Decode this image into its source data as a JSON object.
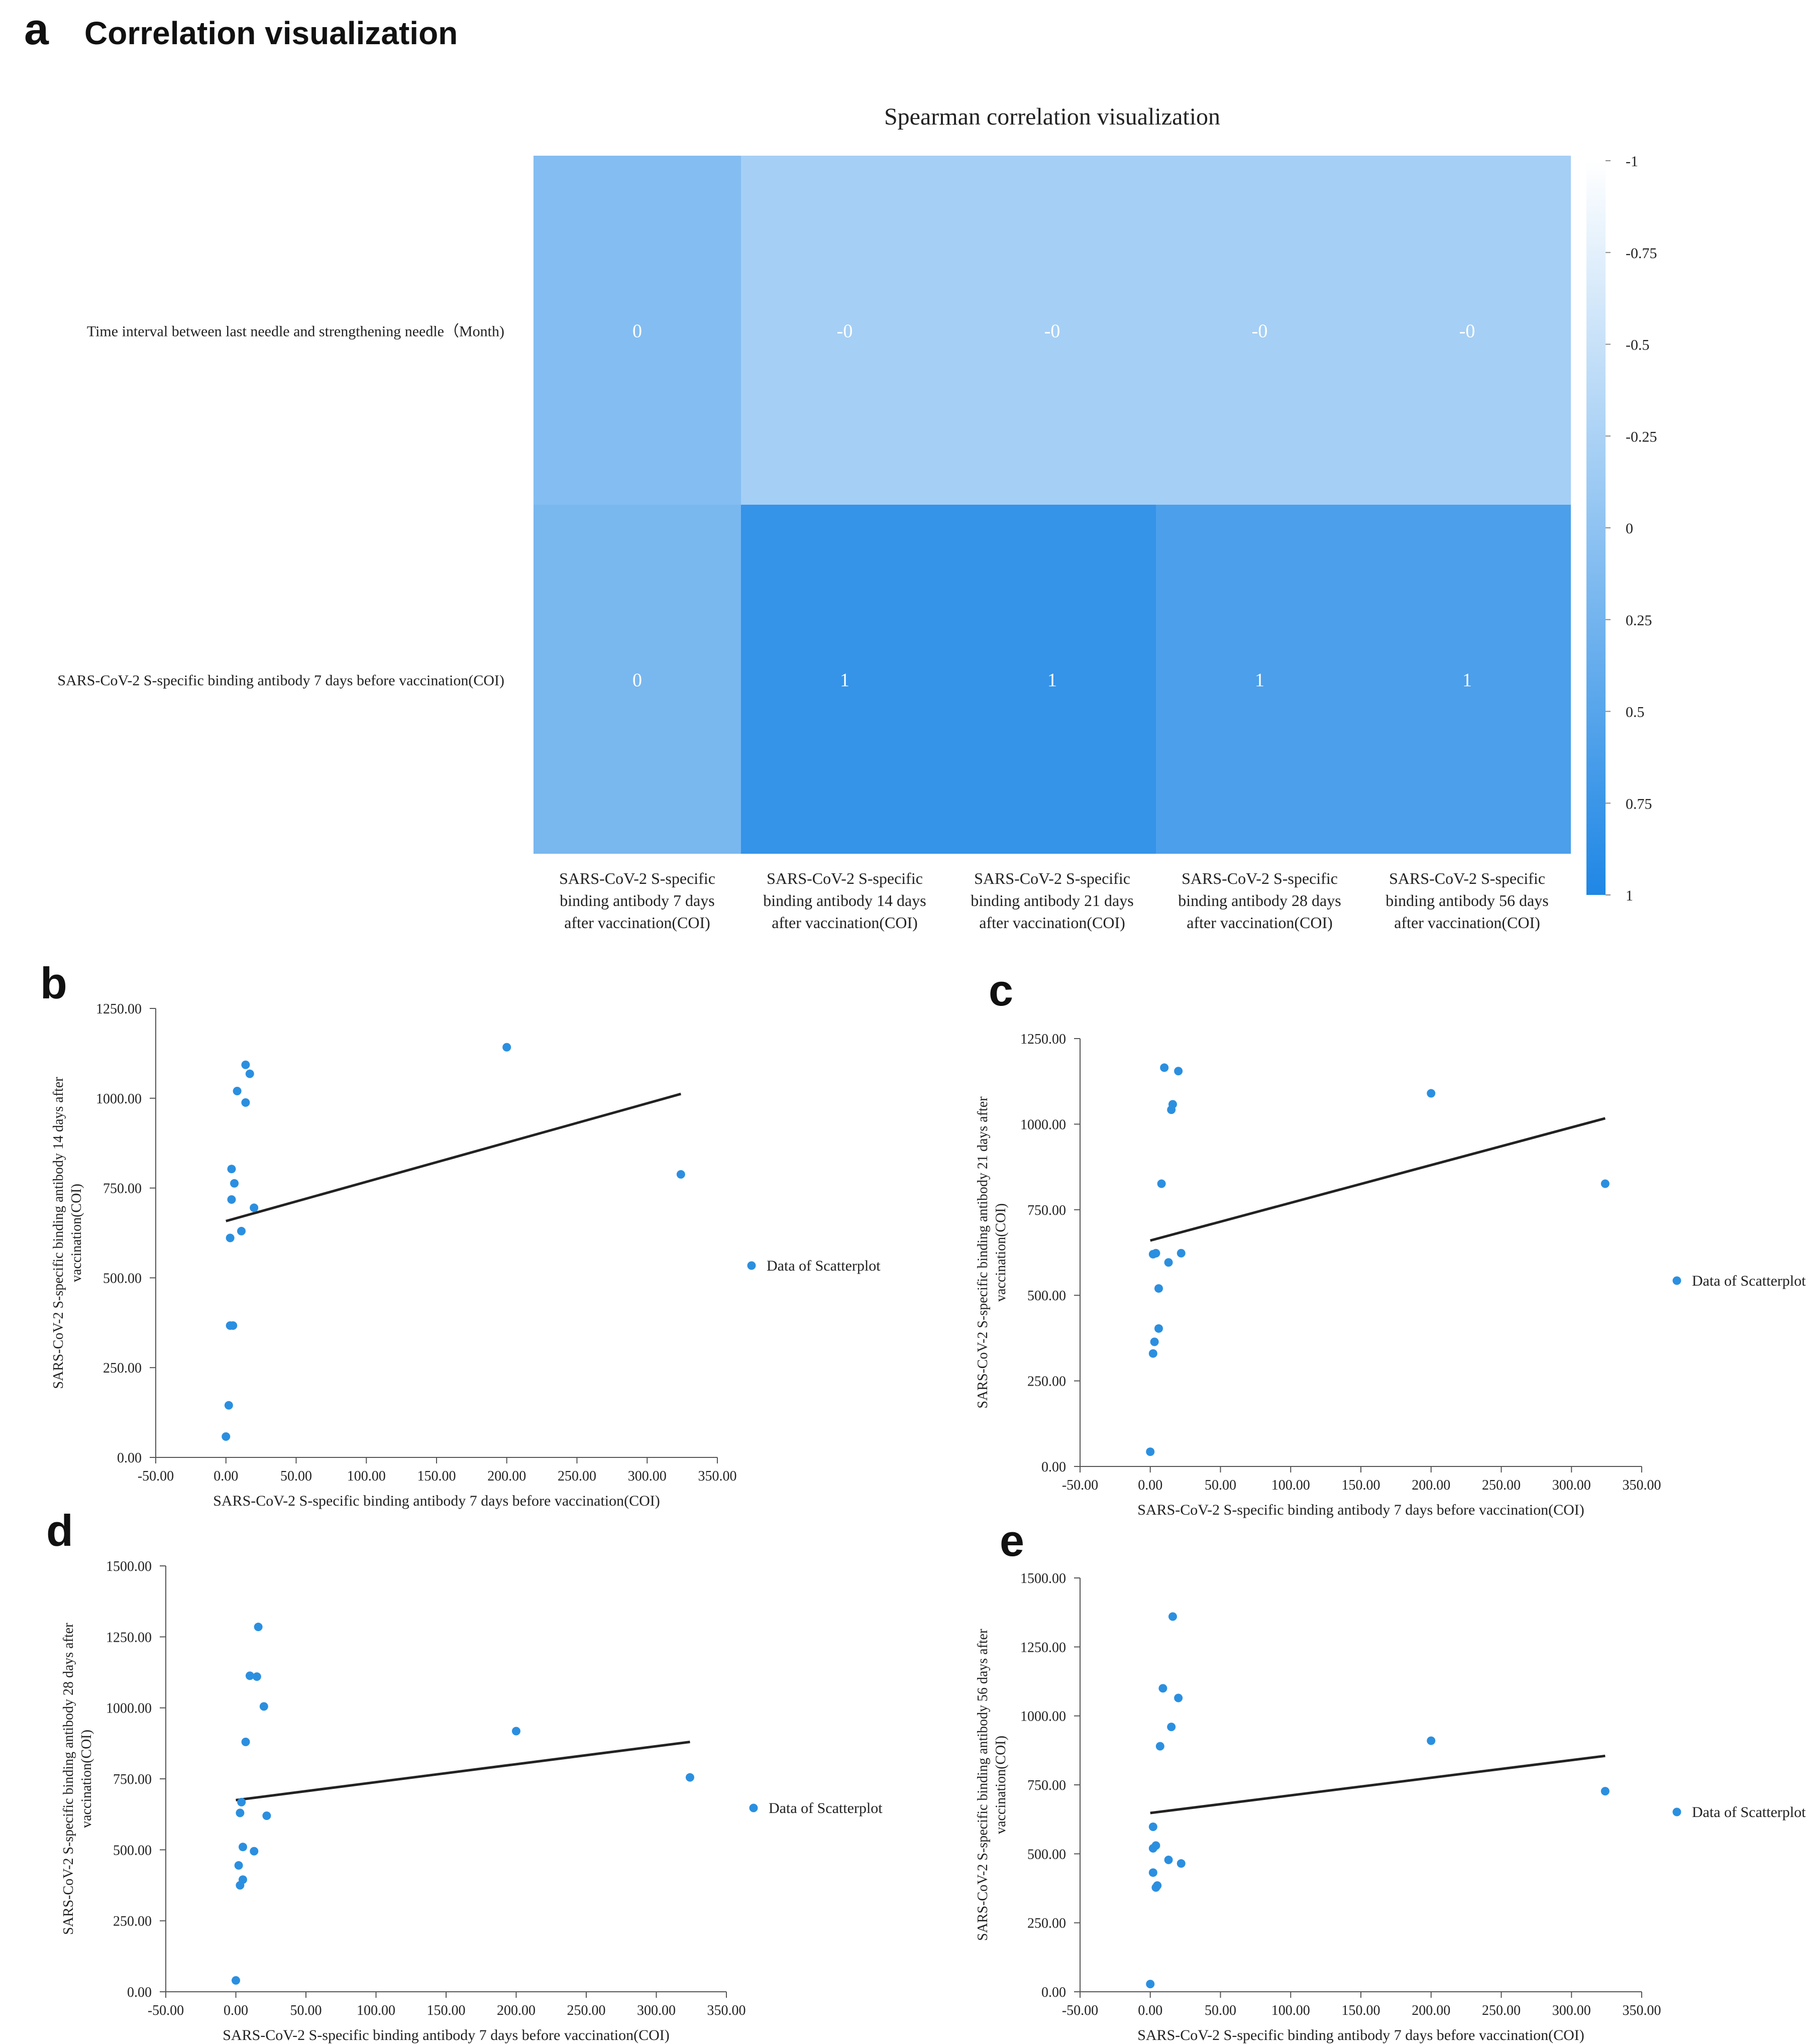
{
  "panel_a": {
    "letter": "a",
    "title": "Correlation visualization"
  },
  "colors": {
    "scatter_point": "#2b8fe0",
    "fit_line": "#222222",
    "cell_values": {
      "0.2": "#64aff2",
      "-0.2": "#b6d9f7",
      "0.1": "#8cc2f3",
      "0.8": "#3597e8",
      "0.6": "#46a1ec"
    }
  },
  "chart_data": [
    {
      "type": "heatmap",
      "title": "Spearman correlation visualization",
      "rows": [
        "Time interval between last needle and strengthening needle（Month)",
        "SARS-CoV-2 S-specific binding antibody 7 days before vaccination(COI)"
      ],
      "columns": [
        [
          "SARS-CoV-2 S-specific",
          "binding antibody 7 days",
          "after vaccination(COI)"
        ],
        [
          "SARS-CoV-2 S-specific",
          "binding antibody 14 days",
          "after vaccination(COI)"
        ],
        [
          "SARS-CoV-2 S-specific",
          "binding antibody 21 days",
          "after vaccination(COI)"
        ],
        [
          "SARS-CoV-2 S-specific",
          "binding antibody 28 days",
          "after vaccination(COI)"
        ],
        [
          "SARS-CoV-2 S-specific",
          "binding antibody 56 days",
          "after vaccination(COI)"
        ]
      ],
      "values": [
        [
          0.1,
          -0.2,
          -0.2,
          -0.2,
          -0.2
        ],
        [
          0.2,
          0.8,
          0.8,
          0.6,
          0.6
        ]
      ],
      "labels": [
        [
          "0",
          "-0",
          "-0",
          "-0",
          "-0"
        ],
        [
          "0",
          "1",
          "1",
          "1",
          "1"
        ]
      ],
      "colorbar": {
        "range": [
          -1,
          1
        ],
        "ticks": [
          "-1",
          "-0.75",
          "-0.5",
          "-0.25",
          "0",
          "0.25",
          "0.5",
          "0.75",
          "1"
        ]
      }
    },
    {
      "panel": "b",
      "type": "scatter",
      "xlabel": "SARS-CoV-2 S-specific binding antibody 7 days before vaccination(COI)",
      "ylabel": [
        "SARS-CoV-2 S-specific binding antibody 14 days after",
        "vaccination(COI)"
      ],
      "legend": "Data of Scatterplot",
      "xlim": [
        -50,
        350
      ],
      "ylim": [
        0,
        1250
      ],
      "xticks": [
        "-50.00",
        "0.00",
        "50.00",
        "100.00",
        "150.00",
        "200.00",
        "250.00",
        "300.00",
        "350.00"
      ],
      "yticks": [
        "0.00",
        "250.00",
        "500.00",
        "750.00",
        "1000.00",
        "1250.00"
      ],
      "points": [
        [
          14,
          1093
        ],
        [
          17,
          1068
        ],
        [
          8,
          1020
        ],
        [
          14,
          988
        ],
        [
          4,
          803
        ],
        [
          6,
          763
        ],
        [
          4,
          718
        ],
        [
          20,
          695
        ],
        [
          11,
          630
        ],
        [
          3,
          611
        ],
        [
          3,
          367
        ],
        [
          5,
          367
        ],
        [
          2,
          145
        ],
        [
          0,
          58
        ],
        [
          200,
          1142
        ],
        [
          324,
          788
        ]
      ],
      "fit": [
        [
          0,
          658
        ],
        [
          324,
          1012
        ]
      ]
    },
    {
      "panel": "c",
      "type": "scatter",
      "xlabel": "SARS-CoV-2 S-specific binding antibody 7 days before vaccination(COI)",
      "ylabel": [
        "SARS-CoV-2 S-specific binding antibody 21 days after",
        "vaccination(COI)"
      ],
      "legend": "Data of Scatterplot",
      "xlim": [
        -50,
        350
      ],
      "ylim": [
        0,
        1250
      ],
      "xticks": [
        "-50.00",
        "0.00",
        "50.00",
        "100.00",
        "150.00",
        "200.00",
        "250.00",
        "300.00",
        "350.00"
      ],
      "yticks": [
        "0.00",
        "250.00",
        "500.00",
        "750.00",
        "1000.00",
        "1250.00"
      ],
      "points": [
        [
          10,
          1165
        ],
        [
          20,
          1155
        ],
        [
          16,
          1058
        ],
        [
          15,
          1042
        ],
        [
          8,
          826
        ],
        [
          4,
          623
        ],
        [
          2,
          620
        ],
        [
          22,
          623
        ],
        [
          13,
          596
        ],
        [
          6,
          520
        ],
        [
          6,
          403
        ],
        [
          3,
          364
        ],
        [
          2,
          330
        ],
        [
          0,
          43
        ],
        [
          200,
          1090
        ],
        [
          324,
          826
        ]
      ],
      "fit": [
        [
          0,
          660
        ],
        [
          324,
          1017
        ]
      ]
    },
    {
      "panel": "d",
      "type": "scatter",
      "xlabel": "SARS-CoV-2 S-specific binding antibody 7 days before vaccination(COI)",
      "ylabel": [
        "SARS-CoV-2 S-specific binding antibody 28 days after",
        "vaccination(COI)"
      ],
      "legend": "Data of Scatterplot",
      "xlim": [
        -50,
        350
      ],
      "ylim": [
        0,
        1500
      ],
      "xticks": [
        "-50.00",
        "0.00",
        "50.00",
        "100.00",
        "150.00",
        "200.00",
        "250.00",
        "300.00",
        "350.00"
      ],
      "yticks": [
        "0.00",
        "250.00",
        "500.00",
        "750.00",
        "1000.00",
        "1250.00",
        "1500.00"
      ],
      "points": [
        [
          16,
          1285
        ],
        [
          10,
          1113
        ],
        [
          15,
          1110
        ],
        [
          20,
          1005
        ],
        [
          7,
          880
        ],
        [
          4,
          668
        ],
        [
          3,
          630
        ],
        [
          22,
          620
        ],
        [
          5,
          510
        ],
        [
          13,
          495
        ],
        [
          2,
          445
        ],
        [
          5,
          395
        ],
        [
          3,
          375
        ],
        [
          0,
          40
        ],
        [
          200,
          918
        ],
        [
          324,
          755
        ]
      ],
      "fit": [
        [
          0,
          675
        ],
        [
          324,
          880
        ]
      ]
    },
    {
      "panel": "e",
      "type": "scatter",
      "xlabel": "SARS-CoV-2 S-specific binding antibody 7 days before vaccination(COI)",
      "ylabel": [
        "SARS-CoV-2 S-specific binding antibody 56 days after",
        "vaccination(COI)"
      ],
      "legend": "Data of Scatterplot",
      "xlim": [
        -50,
        350
      ],
      "ylim": [
        0,
        1500
      ],
      "xticks": [
        "-50.00",
        "0.00",
        "50.00",
        "100.00",
        "150.00",
        "200.00",
        "250.00",
        "300.00",
        "350.00"
      ],
      "yticks": [
        "0.00",
        "250.00",
        "500.00",
        "750.00",
        "1000.00",
        "1250.00",
        "1500.00"
      ],
      "points": [
        [
          16,
          1360
        ],
        [
          9,
          1100
        ],
        [
          20,
          1065
        ],
        [
          15,
          960
        ],
        [
          7,
          890
        ],
        [
          2,
          598
        ],
        [
          4,
          530
        ],
        [
          2,
          520
        ],
        [
          13,
          478
        ],
        [
          22,
          465
        ],
        [
          2,
          432
        ],
        [
          5,
          385
        ],
        [
          4,
          378
        ],
        [
          0,
          28
        ],
        [
          200,
          910
        ],
        [
          324,
          727
        ]
      ],
      "fit": [
        [
          0,
          648
        ],
        [
          324,
          855
        ]
      ]
    }
  ]
}
